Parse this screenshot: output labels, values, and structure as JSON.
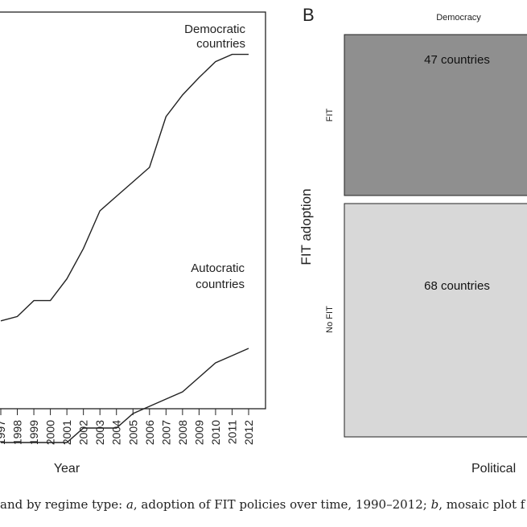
{
  "panel_a": {
    "chart_data": {
      "type": "line",
      "x": [
        1997,
        1998,
        1999,
        2000,
        2001,
        2002,
        2003,
        2004,
        2005,
        2006,
        2007,
        2008,
        2009,
        2010,
        2011,
        2012
      ],
      "x_tick_labels": [
        "1997",
        "1998",
        "1999",
        "2000",
        "2001",
        "2002",
        "2003",
        "2004",
        "2005",
        "2006",
        "2007",
        "2008",
        "2009",
        "2010",
        "2011",
        "2012"
      ],
      "xlabel": "Year",
      "series": [
        {
          "name": "Democratic countries",
          "label_lines": [
            "Democratic",
            "countries"
          ],
          "values": [
            4,
            7,
            18,
            18,
            33,
            54,
            80,
            90,
            100,
            110,
            145,
            160,
            172,
            183,
            188,
            188
          ]
        },
        {
          "name": "Autocratic countries",
          "label_lines": [
            "Autocratic",
            "countries"
          ],
          "values": [
            -80,
            -80,
            -80,
            -80,
            -80,
            -70,
            -70,
            -70,
            -60,
            -55,
            -50,
            -45,
            -35,
            -25,
            -20,
            -15
          ]
        }
      ]
    }
  },
  "panel_b": {
    "label": "B",
    "top_label": "Democracy",
    "y_axis_label": "FIT adoption",
    "x_axis_label": "Political",
    "row_labels": [
      "FIT",
      "No FIT"
    ],
    "chart_data": {
      "type": "heatmap",
      "cells": [
        {
          "row": "FIT",
          "column": "Democracy",
          "count": 47,
          "text": "47 countries",
          "color": "#8f8f8f"
        },
        {
          "row": "No FIT",
          "column": "Democracy",
          "count": 68,
          "text": "68 countries",
          "color": "#d8d8d8"
        }
      ]
    }
  },
  "caption": {
    "part1": " and by regime type: ",
    "a": "a",
    "part2": ", adoption of FIT policies over time, 1990–2012; ",
    "b": "b",
    "part3": ", mosaic plot f"
  }
}
